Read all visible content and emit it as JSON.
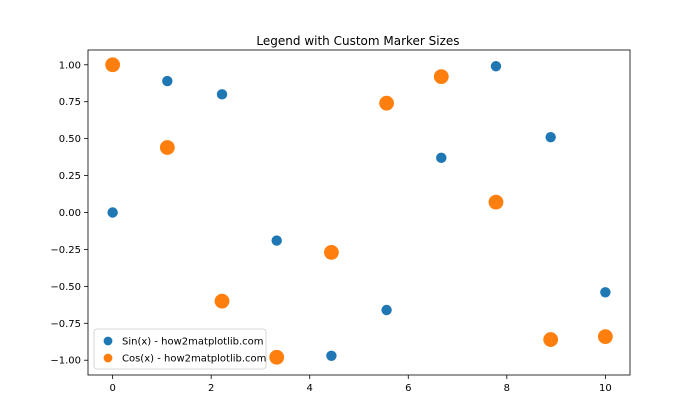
{
  "chart_data": {
    "type": "scatter",
    "title": "Legend with Custom Marker Sizes",
    "xlabel": "",
    "ylabel": "",
    "xlim": [
      -0.5,
      10.5
    ],
    "ylim": [
      -1.1,
      1.1
    ],
    "xticks": [
      0,
      2,
      4,
      6,
      8,
      10
    ],
    "yticks": [
      -1.0,
      -0.75,
      -0.5,
      -0.25,
      0.0,
      0.25,
      0.5,
      0.75,
      1.0
    ],
    "xtick_labels": [
      "0",
      "2",
      "4",
      "6",
      "8",
      "10"
    ],
    "ytick_labels": [
      "−1.00",
      "−0.75",
      "−0.50",
      "−0.25",
      "0.00",
      "0.25",
      "0.50",
      "0.75",
      "1.00"
    ],
    "grid": false,
    "legend_position": "lower-left",
    "series": [
      {
        "name": "Sin(x) - how2matplotlib.com",
        "color": "#1f77b4",
        "marker_size": "small",
        "x": [
          0,
          1.11,
          2.22,
          3.33,
          4.44,
          5.56,
          6.67,
          7.78,
          8.89,
          10.0
        ],
        "y": [
          0.0,
          0.89,
          0.8,
          -0.19,
          -0.97,
          -0.66,
          0.37,
          0.99,
          0.51,
          -0.54
        ]
      },
      {
        "name": "Cos(x) - how2matplotlib.com",
        "color": "#ff7f0e",
        "marker_size": "large",
        "x": [
          0,
          1.11,
          2.22,
          3.33,
          4.44,
          5.56,
          6.67,
          7.78,
          8.89,
          10.0
        ],
        "y": [
          1.0,
          0.44,
          -0.6,
          -0.98,
          -0.27,
          0.74,
          0.92,
          0.07,
          -0.86,
          -0.84
        ]
      }
    ]
  }
}
